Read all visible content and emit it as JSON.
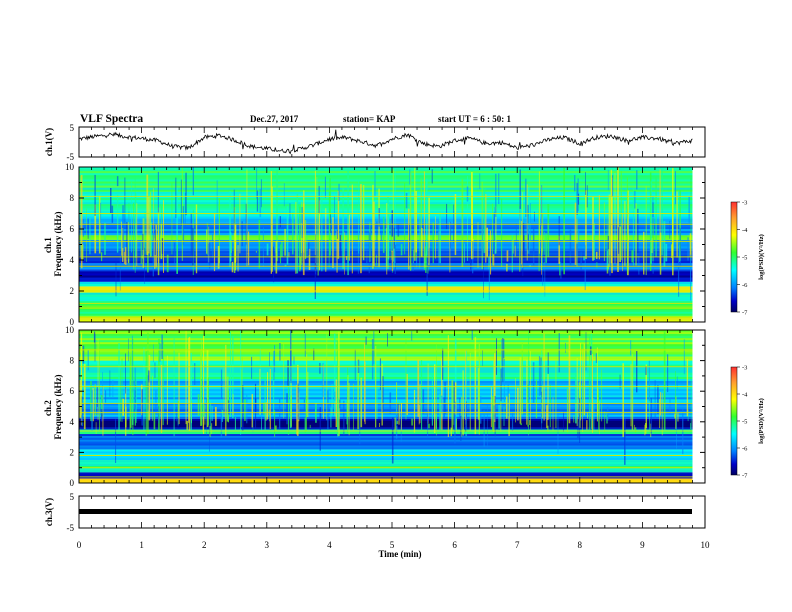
{
  "header": {
    "title": "VLF Spectra",
    "date": "Dec.27, 2017",
    "station": "station= KAP",
    "start": "start  UT =  6 : 50: 1"
  },
  "chart_data": [
    {
      "type": "line",
      "panel": "ch1-waveform",
      "ylabel": "ch.1(V)",
      "ylim": [
        -5,
        5
      ],
      "yticks": [
        "5",
        "-5"
      ],
      "xlim": [
        0,
        10
      ],
      "x_end": 9.8,
      "series": [
        {
          "x": [
            0,
            0.25,
            0.5,
            0.75,
            1.0,
            1.25,
            1.5,
            1.75,
            2.0,
            2.25,
            2.5,
            2.75,
            3.0,
            3.25,
            3.5,
            3.75,
            4.0,
            4.25,
            4.5,
            4.75,
            5.0,
            5.25,
            5.5,
            5.75,
            6.0,
            6.25,
            6.5,
            6.75,
            7.0,
            7.25,
            7.5,
            7.75,
            8.0,
            8.25,
            8.5,
            8.75,
            9.0,
            9.25,
            9.5,
            9.8
          ],
          "values": [
            1.0,
            1.8,
            2.5,
            1.8,
            1.2,
            0.5,
            -1.5,
            -2.0,
            1.5,
            2.2,
            0.5,
            -1.5,
            -2.2,
            -3.0,
            -2.5,
            -1.0,
            1.0,
            1.5,
            0.2,
            -1.2,
            1.0,
            2.5,
            -0.5,
            -1.5,
            0.5,
            1.2,
            -0.5,
            -0.2,
            -2.0,
            -1.0,
            0.8,
            1.5,
            -0.5,
            1.5,
            2.0,
            0.5,
            1.5,
            1.2,
            -0.5,
            0.5
          ]
        }
      ]
    },
    {
      "type": "heatmap",
      "panel": "ch1-spectrogram",
      "ylabel": "ch.1 Frequency (kHz)",
      "ylim": [
        0,
        10
      ],
      "yticks": [
        "0",
        "2",
        "4",
        "6",
        "8",
        "10"
      ],
      "xlim": [
        0,
        9.8
      ],
      "zlim": [
        -7,
        -3
      ],
      "bands": [
        {
          "f0": 0.0,
          "f1": 0.4,
          "level": -4.6
        },
        {
          "f0": 0.4,
          "f1": 1.2,
          "level": -5.0
        },
        {
          "f0": 1.2,
          "f1": 1.9,
          "level": -5.3
        },
        {
          "f0": 1.9,
          "f1": 2.3,
          "level": -4.5
        },
        {
          "f0": 2.3,
          "f1": 2.6,
          "level": -5.4
        },
        {
          "f0": 2.6,
          "f1": 3.4,
          "level": -6.6
        },
        {
          "f0": 3.4,
          "f1": 3.8,
          "level": -6.1
        },
        {
          "f0": 3.8,
          "f1": 4.6,
          "level": -6.5
        },
        {
          "f0": 4.6,
          "f1": 5.3,
          "level": -6.0
        },
        {
          "f0": 5.3,
          "f1": 5.6,
          "level": -4.9
        },
        {
          "f0": 5.6,
          "f1": 6.4,
          "level": -6.1
        },
        {
          "f0": 6.4,
          "f1": 7.2,
          "level": -5.6
        },
        {
          "f0": 7.2,
          "f1": 8.4,
          "level": -5.3
        },
        {
          "f0": 8.4,
          "f1": 10.0,
          "level": -5.2
        }
      ],
      "lines_khz": [
        0.3,
        0.9,
        1.2,
        2.0,
        3.6,
        4.2,
        5.2,
        6.3,
        7.0,
        8.1
      ]
    },
    {
      "type": "heatmap",
      "panel": "ch2-spectrogram",
      "ylabel": "ch.2 Frequency (kHz)",
      "ylim": [
        0,
        10
      ],
      "yticks": [
        "0",
        "2",
        "4",
        "6",
        "8",
        "10"
      ],
      "xlim": [
        0,
        9.8
      ],
      "zlim": [
        -7,
        -3
      ],
      "bands": [
        {
          "f0": 0.0,
          "f1": 0.3,
          "level": -4.4
        },
        {
          "f0": 0.3,
          "f1": 0.7,
          "level": -6.7
        },
        {
          "f0": 0.7,
          "f1": 1.5,
          "level": -5.2
        },
        {
          "f0": 1.5,
          "f1": 2.2,
          "level": -5.6
        },
        {
          "f0": 2.2,
          "f1": 3.2,
          "level": -6.3
        },
        {
          "f0": 3.2,
          "f1": 3.5,
          "level": -5.2
        },
        {
          "f0": 3.5,
          "f1": 4.2,
          "level": -6.8
        },
        {
          "f0": 4.2,
          "f1": 5.2,
          "level": -6.0
        },
        {
          "f0": 5.2,
          "f1": 6.8,
          "level": -5.8
        },
        {
          "f0": 6.8,
          "f1": 8.0,
          "level": -5.3
        },
        {
          "f0": 8.0,
          "f1": 10.0,
          "level": -4.9
        }
      ],
      "lines_khz": [
        0.4,
        1.0,
        1.8,
        3.4,
        4.6,
        5.2,
        6.3,
        7.6,
        8.7
      ]
    },
    {
      "type": "line",
      "panel": "ch3-waveform",
      "ylabel": "ch.3(V)",
      "ylim": [
        -5,
        5
      ],
      "yticks": [
        "5",
        "-5"
      ],
      "xlim": [
        0,
        10
      ],
      "series": [
        {
          "x": [
            0,
            9.8
          ],
          "values": [
            0,
            0
          ]
        }
      ]
    }
  ],
  "xaxis": {
    "label": "Time  (min)",
    "ticks": [
      "0",
      "1",
      "2",
      "3",
      "4",
      "5",
      "6",
      "7",
      "8",
      "9",
      "10"
    ]
  },
  "colorbar": {
    "ticks": [
      "-3",
      "-4",
      "-5",
      "-6",
      "-7"
    ],
    "label": "log(PSD)(V²/Hz)",
    "colors": [
      "#ff3030",
      "#ff9c30",
      "#ffff00",
      "#30ff30",
      "#00ffff",
      "#0080ff",
      "#0000c8",
      "#000060"
    ]
  }
}
